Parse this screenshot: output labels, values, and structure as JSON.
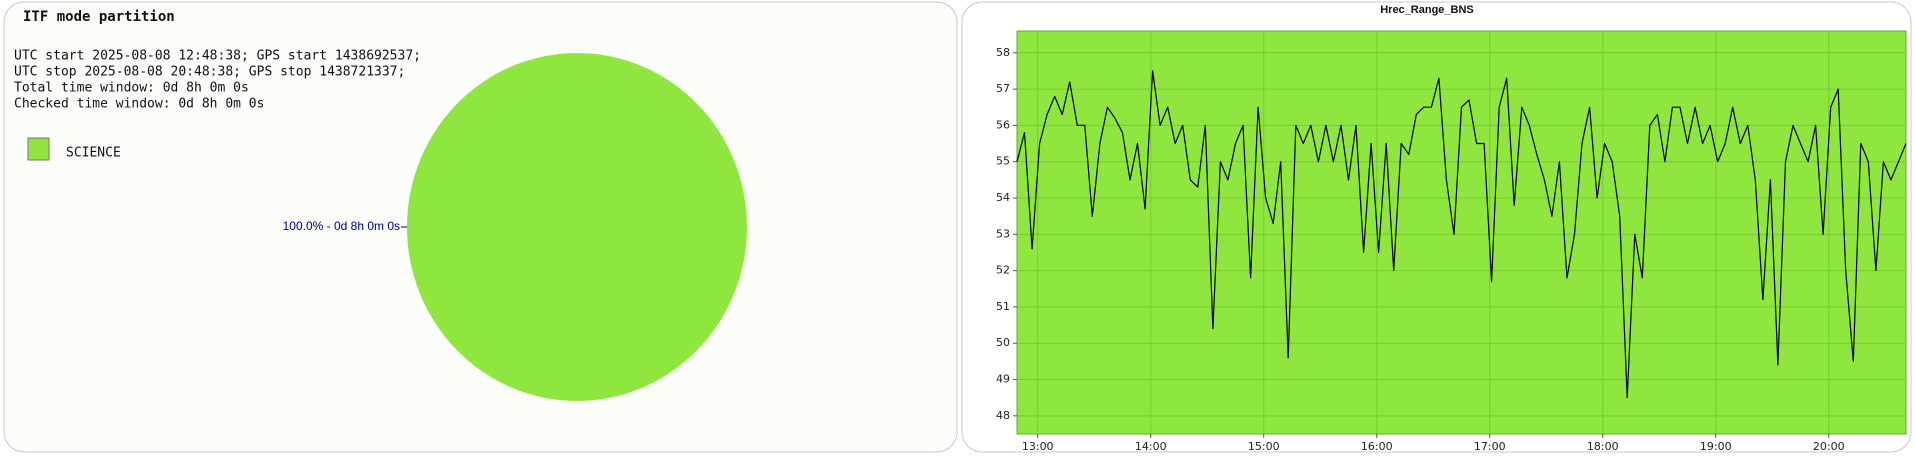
{
  "chart_data": [
    {
      "type": "pie",
      "title": "ITF mode partition",
      "annotations": [
        "UTC start 2025-08-08 12:48:38; GPS start 1438692537;",
        "UTC stop 2025-08-08 20:48:38; GPS stop 1438721337;",
        "Total time window: 0d 8h 0m 0s",
        "Checked time window: 0d 8h 0m 0s"
      ],
      "categories": [
        "SCIENCE"
      ],
      "values": [
        100
      ],
      "value_labels": [
        "100.0% - 0d 8h 0m 0s"
      ],
      "colors": [
        "#8ee63e"
      ],
      "legend": "top-left"
    },
    {
      "type": "line",
      "title": "Hrec_Range_BNS",
      "x": [
        "12:49",
        "12:53",
        "12:57",
        "13:01",
        "13:05",
        "13:09",
        "13:13",
        "13:17",
        "13:21",
        "13:25",
        "13:29",
        "13:33",
        "13:37",
        "13:41",
        "13:45",
        "13:49",
        "13:53",
        "13:57",
        "14:01",
        "14:05",
        "14:09",
        "14:13",
        "14:17",
        "14:21",
        "14:25",
        "14:29",
        "14:33",
        "14:37",
        "14:41",
        "14:45",
        "14:49",
        "14:53",
        "14:57",
        "15:01",
        "15:05",
        "15:09",
        "15:13",
        "15:17",
        "15:21",
        "15:25",
        "15:29",
        "15:33",
        "15:37",
        "15:41",
        "15:45",
        "15:49",
        "15:53",
        "15:57",
        "16:01",
        "16:05",
        "16:09",
        "16:13",
        "16:17",
        "16:21",
        "16:25",
        "16:29",
        "16:33",
        "16:37",
        "16:41",
        "16:45",
        "16:49",
        "16:53",
        "16:57",
        "17:01",
        "17:05",
        "17:09",
        "17:13",
        "17:17",
        "17:21",
        "17:25",
        "17:29",
        "17:33",
        "17:37",
        "17:41",
        "17:45",
        "17:49",
        "17:53",
        "17:57",
        "18:01",
        "18:05",
        "18:09",
        "18:13",
        "18:17",
        "18:21",
        "18:25",
        "18:29",
        "18:33",
        "18:37",
        "18:41",
        "18:45",
        "18:49",
        "18:53",
        "18:57",
        "19:01",
        "19:05",
        "19:09",
        "19:13",
        "19:17",
        "19:21",
        "19:25",
        "19:29",
        "19:33",
        "19:37",
        "19:41",
        "19:45",
        "19:49",
        "19:53",
        "19:57",
        "20:01",
        "20:05",
        "20:09",
        "20:13",
        "20:17",
        "20:21",
        "20:25",
        "20:29",
        "20:33",
        "20:37",
        "20:41"
      ],
      "series": [
        {
          "name": "Hrec_Range_BNS",
          "color": "#000000",
          "values": [
            55,
            55.8,
            52.6,
            55.5,
            56.3,
            56.8,
            56.3,
            57.2,
            56,
            56,
            53.5,
            55.5,
            56.5,
            56.2,
            55.8,
            54.5,
            55.5,
            53.7,
            57.5,
            56,
            56.5,
            55.5,
            56,
            54.5,
            54.3,
            56,
            50.4,
            55,
            54.5,
            55.5,
            56,
            51.8,
            56.5,
            54,
            53.3,
            55,
            49.6,
            56,
            55.5,
            56,
            55,
            56,
            55,
            56,
            54.5,
            56,
            52.5,
            55.5,
            52.5,
            55.5,
            52,
            55.5,
            55.2,
            56.3,
            56.5,
            56.5,
            57.3,
            54.5,
            53,
            56.5,
            56.7,
            55.5,
            55.5,
            51.7,
            56.5,
            57.3,
            53.8,
            56.5,
            56,
            55.2,
            54.5,
            53.5,
            55,
            51.8,
            53,
            55.5,
            56.5,
            54,
            55.5,
            55,
            53.5,
            48.5,
            53,
            51.8,
            56,
            56.3,
            55,
            56.5,
            56.5,
            55.5,
            56.5,
            55.5,
            56,
            55,
            55.5,
            56.5,
            55.5,
            56,
            54.5,
            51.2,
            54.5,
            49.4,
            55,
            56,
            55.5,
            55,
            56,
            53,
            56.5,
            57,
            52,
            49.5,
            55.5,
            55,
            52,
            55,
            54.5,
            55,
            55.5
          ]
        }
      ],
      "xlim": [
        "12:49",
        "20:41"
      ],
      "xticks": [
        "13:00",
        "14:00",
        "15:00",
        "16:00",
        "17:00",
        "18:00",
        "19:00",
        "20:00"
      ],
      "ylim": [
        47.5,
        58.6
      ],
      "yticks": [
        48,
        49,
        50,
        51,
        52,
        53,
        54,
        55,
        56,
        57,
        58
      ],
      "plot_background": "#8ee63e",
      "grid": true
    }
  ]
}
